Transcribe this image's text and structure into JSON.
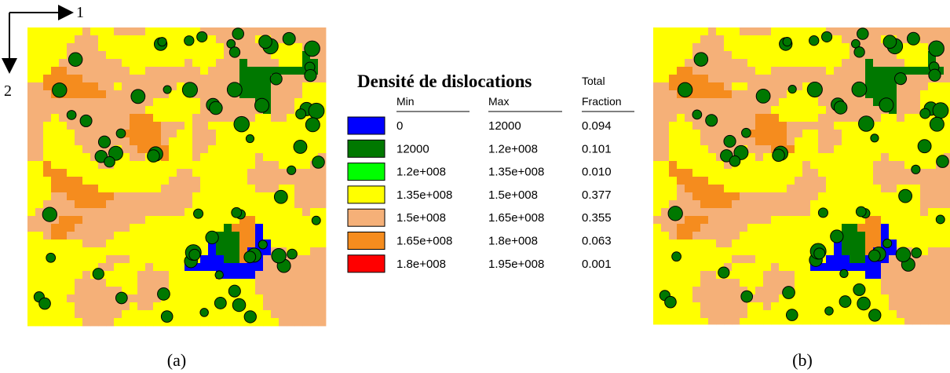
{
  "axes": {
    "x_label": "1",
    "y_label": "2"
  },
  "legend": {
    "title": "Densité de dislocations",
    "headers": {
      "min": "Min",
      "max": "Max",
      "total": "Total",
      "fraction": "Fraction"
    },
    "rows": [
      {
        "color": "#0000ff",
        "min": "0",
        "max": "12000",
        "fraction": "0.094"
      },
      {
        "color": "#007800",
        "min": "12000",
        "max": "1.2e+008",
        "fraction": "0.101"
      },
      {
        "color": "#00ff00",
        "min": "1.2e+008",
        "max": "1.35e+008",
        "fraction": "0.010"
      },
      {
        "color": "#ffff00",
        "min": "1.35e+008",
        "max": "1.5e+008",
        "fraction": "0.377"
      },
      {
        "color": "#f5b078",
        "min": "1.5e+008",
        "max": "1.65e+008",
        "fraction": "0.355"
      },
      {
        "color": "#f58c1e",
        "min": "1.65e+008",
        "max": "1.8e+008",
        "fraction": "0.063"
      },
      {
        "color": "#ff0000",
        "min": "1.8e+008",
        "max": "1.95e+008",
        "fraction": "0.001"
      }
    ]
  },
  "captions": {
    "a": "(a)",
    "b": "(b)"
  }
}
